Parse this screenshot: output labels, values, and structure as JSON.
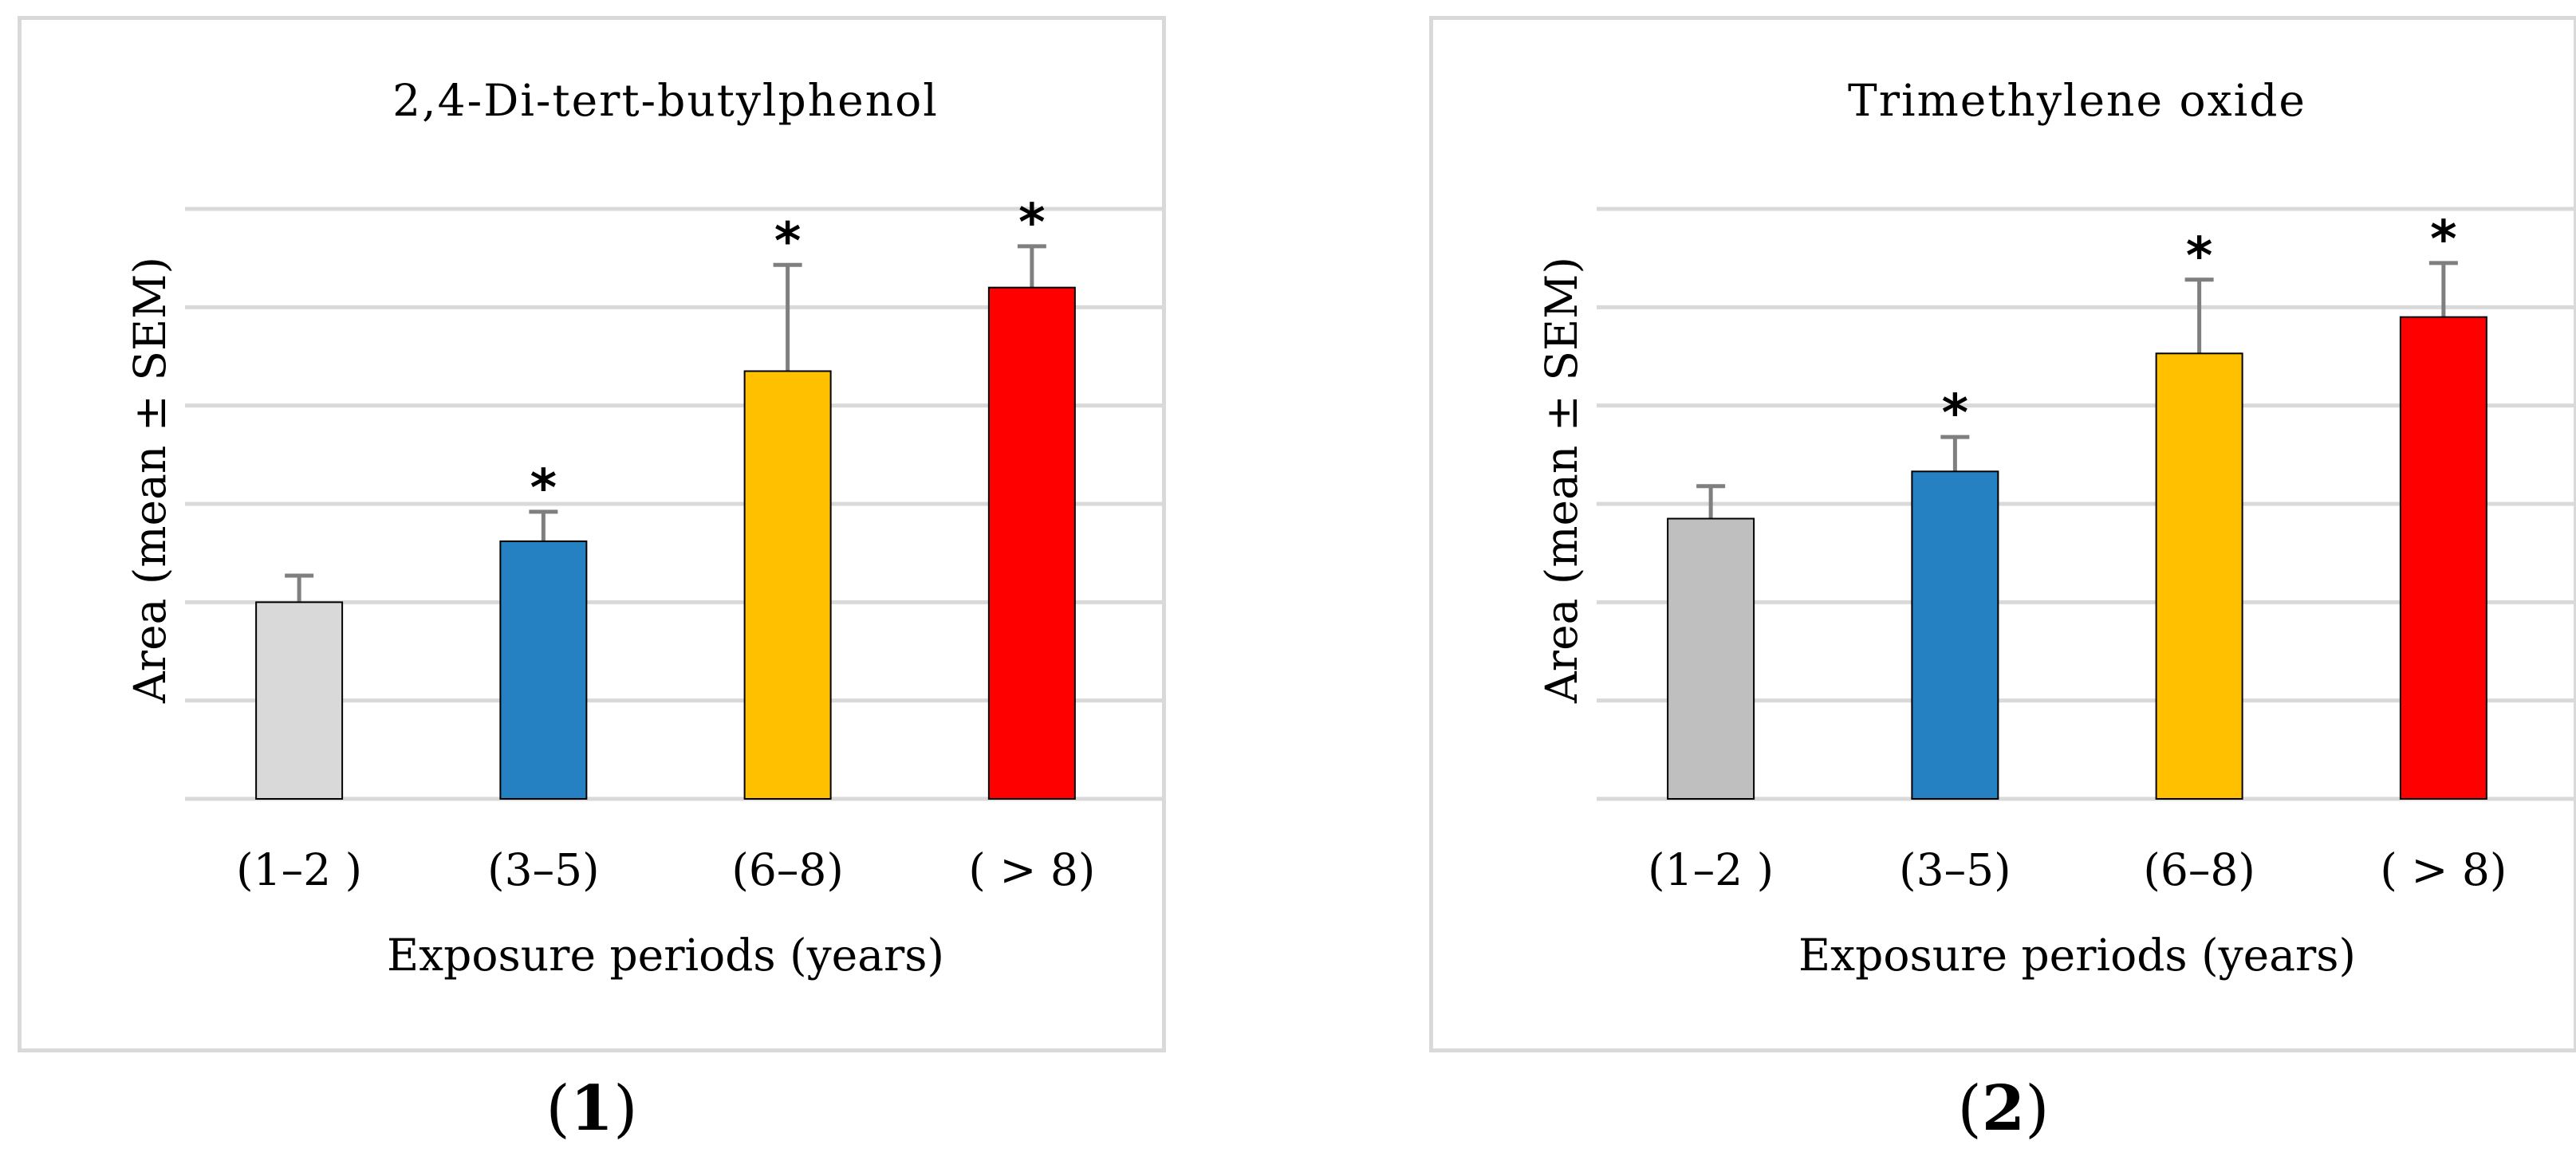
{
  "panels": [
    {
      "label_open": "(",
      "label_num": "1",
      "label_close": ")"
    },
    {
      "label_open": "(",
      "label_num": "2",
      "label_close": ")"
    }
  ],
  "chart_data": [
    {
      "type": "bar",
      "title": "2,4-Di-tert-butylphenol",
      "xlabel": "Exposure periods (years)",
      "ylabel": "Area (mean ± SEM)",
      "categories": [
        "(1–2 )",
        "(3–5)",
        "(6–8)",
        "( > 8)"
      ],
      "values": [
        2.0,
        2.62,
        4.35,
        5.2
      ],
      "errors": [
        0.27,
        0.3,
        1.08,
        0.42
      ],
      "significance": [
        "",
        "*",
        "*",
        "*"
      ],
      "colors": [
        "#d9d9d9",
        "#2681c2",
        "#ffc000",
        "#ff0000"
      ],
      "ylim": [
        0,
        6
      ],
      "yticks": [
        0,
        1,
        2,
        3,
        4,
        5,
        6
      ],
      "ytick_labels_shown": false,
      "grid": true
    },
    {
      "type": "bar",
      "title": "Trimethylene oxide",
      "xlabel": "Exposure periods (years)",
      "ylabel": "Area (mean ± SEM)",
      "categories": [
        "(1–2 )",
        "(3–5)",
        "(6–8)",
        "( > 8)"
      ],
      "values": [
        2.85,
        3.33,
        4.53,
        4.9
      ],
      "errors": [
        0.33,
        0.35,
        0.75,
        0.55
      ],
      "significance": [
        "",
        "*",
        "*",
        "*"
      ],
      "colors": [
        "#bfbfbf",
        "#2681c2",
        "#ffc000",
        "#ff0000"
      ],
      "ylim": [
        0,
        6
      ],
      "yticks": [
        0,
        1,
        2,
        3,
        4,
        5,
        6
      ],
      "ytick_labels_shown": false,
      "grid": true
    }
  ]
}
